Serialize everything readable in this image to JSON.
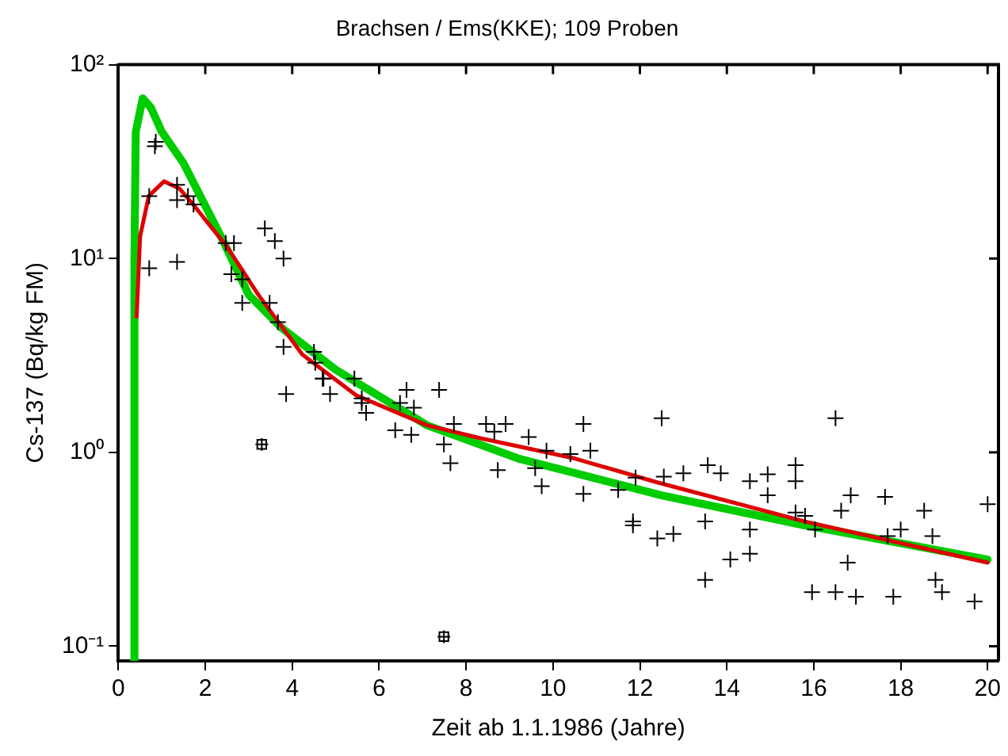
{
  "chart_data": {
    "type": "scatter",
    "title": "Brachsen / Ems(KKE); 109 Proben",
    "xlabel": "Zeit ab 1.1.1986 (Jahre)",
    "ylabel": "Cs-137 (Bq/kg FM)",
    "log": "y",
    "grid": false,
    "legend": false,
    "xlim": [
      0,
      20.25
    ],
    "xticks": [
      0,
      2,
      4,
      6,
      8,
      10,
      12,
      14,
      16,
      18,
      20
    ],
    "ylim": [
      0.084,
      100
    ],
    "yticks": [
      {
        "value": 0.1,
        "label": "10⁻¹"
      },
      {
        "value": 1,
        "label": "10⁰"
      },
      {
        "value": 10,
        "label": "10¹"
      },
      {
        "value": 100,
        "label": "10²"
      }
    ],
    "series": [
      {
        "type": "scatter",
        "marker": "cross",
        "color": "#000000",
        "x": [
          0.84,
          0.86,
          0.71,
          0.71,
          1.35,
          1.35,
          1.35,
          1.6,
          1.73,
          2.47,
          2.66,
          2.6,
          2.85,
          2.85,
          3.37,
          3.6,
          3.8,
          3.48,
          3.67,
          3.8,
          3.86,
          4.5,
          4.53,
          4.72,
          4.87,
          5.43,
          5.6,
          5.7,
          4.7,
          5.6,
          6.37,
          6.48,
          6.63,
          6.74,
          6.8,
          7.38,
          7.49,
          7.64,
          7.72,
          8.46,
          8.65,
          8.91,
          8.73,
          9.44,
          9.59,
          9.74,
          9.85,
          10.4,
          10.7,
          10.86,
          10.7,
          11.5,
          11.9,
          11.84,
          11.84,
          12.4,
          12.5,
          12.55,
          12.77,
          13.0,
          13.56,
          13.86,
          13.5,
          13.5,
          14.08,
          14.53,
          14.53,
          14.53,
          14.94,
          14.94,
          15.58,
          15.58,
          15.58,
          15.8,
          16.03,
          15.96,
          16.5,
          16.63,
          16.85,
          16.78,
          16.5,
          16.97,
          17.64,
          17.7,
          17.83,
          18.0,
          18.54,
          18.73,
          18.8,
          18.95,
          19.7,
          20.0
        ],
        "values": [
          38,
          40,
          21,
          8.9,
          24,
          20,
          9.6,
          21,
          19,
          12,
          12,
          8.3,
          7.8,
          5.9,
          14.3,
          12.3,
          10,
          5.9,
          4.7,
          3.5,
          2.0,
          3.3,
          2.9,
          2.4,
          2.0,
          2.4,
          1.9,
          1.6,
          2.4,
          1.8,
          1.3,
          1.8,
          2.1,
          1.23,
          1.7,
          2.1,
          1.1,
          0.88,
          1.4,
          1.4,
          1.28,
          1.4,
          0.81,
          1.2,
          0.83,
          0.67,
          1.02,
          0.98,
          1.4,
          1.02,
          0.61,
          0.64,
          0.74,
          0.44,
          0.42,
          0.36,
          1.5,
          0.75,
          0.38,
          0.78,
          0.86,
          0.78,
          0.44,
          0.22,
          0.28,
          0.71,
          0.4,
          0.3,
          0.77,
          0.6,
          0.86,
          0.71,
          0.49,
          0.47,
          0.4,
          0.19,
          1.5,
          0.5,
          0.6,
          0.27,
          0.19,
          0.18,
          0.59,
          0.37,
          0.18,
          0.4,
          0.5,
          0.37,
          0.22,
          0.19,
          0.17,
          0.54
        ]
      },
      {
        "type": "scatter",
        "marker": "square",
        "color": "#000000",
        "x": [
          3.3,
          7.49
        ],
        "values": [
          1.1,
          0.112
        ]
      },
      {
        "type": "line",
        "marker": "none",
        "color": "#dd0000",
        "x": [
          0.42,
          0.5,
          0.7,
          1.05,
          1.4,
          1.72,
          2.5,
          3.2,
          4.23,
          5.47,
          7.1,
          8.35,
          10.5,
          12.4,
          15.8,
          20
        ],
        "values": [
          5,
          13,
          21,
          25,
          23,
          19,
          11.5,
          6.6,
          3.2,
          1.97,
          1.38,
          1.18,
          0.93,
          0.7,
          0.44,
          0.27
        ]
      },
      {
        "type": "line",
        "marker": "none",
        "color": "#00cc00",
        "x": [
          0.36,
          0.37,
          0.4,
          0.56,
          0.75,
          1.0,
          1.5,
          2.36,
          3.0,
          3.75,
          5.0,
          7.1,
          9.2,
          12.5,
          15.8,
          20
        ],
        "values": [
          0.084,
          10,
          45,
          67,
          60,
          45,
          31,
          13,
          6.5,
          4.4,
          2.67,
          1.38,
          0.93,
          0.6,
          0.42,
          0.28
        ]
      }
    ]
  }
}
